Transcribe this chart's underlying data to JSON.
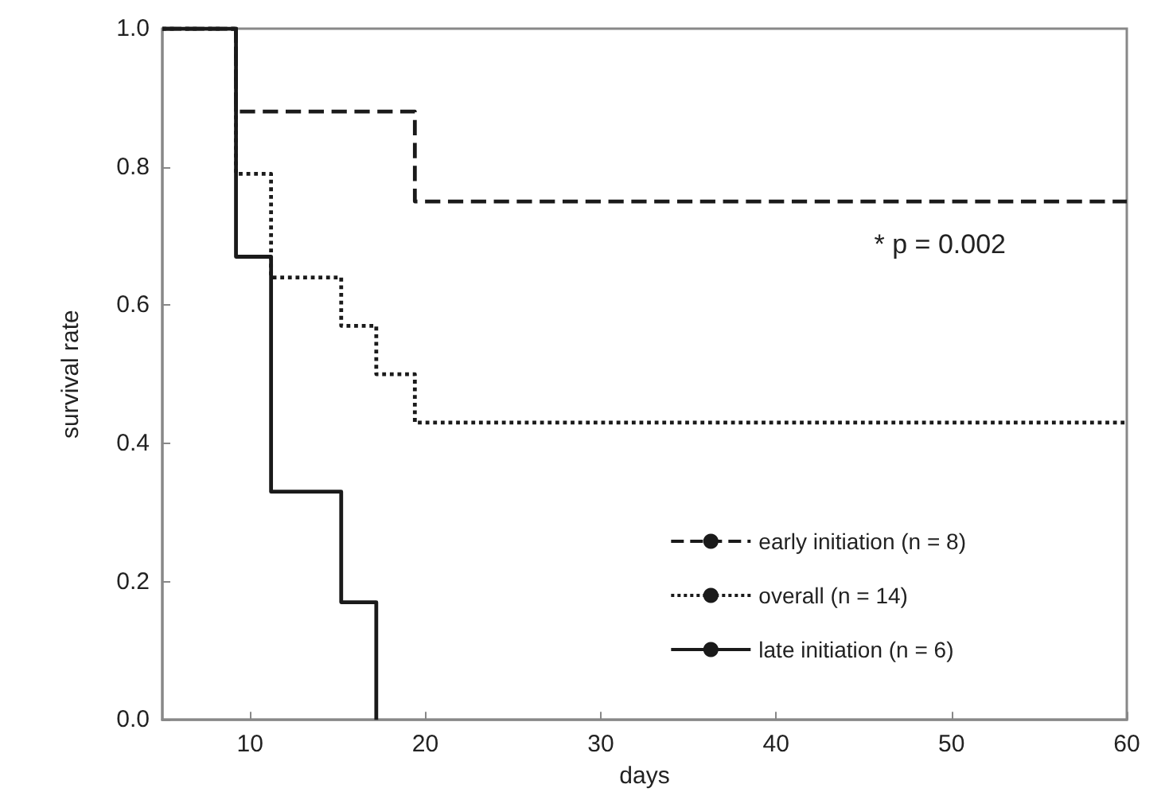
{
  "chart_data": {
    "type": "step",
    "xlabel": "days",
    "ylabel": "survival rate",
    "xlim": [
      5,
      60
    ],
    "xticks": [
      10,
      20,
      30,
      40,
      50,
      60
    ],
    "ylim": [
      0,
      1
    ],
    "yticks": [
      {
        "value": 0,
        "label": "0.0"
      },
      {
        "value": 0.2,
        "label": "0.2"
      },
      {
        "value": 0.4,
        "label": "0.4"
      },
      {
        "value": 0.6,
        "label": "0.6"
      },
      {
        "value": 0.8,
        "label": "0.8"
      },
      {
        "value": 1,
        "label": "1.0"
      }
    ],
    "grid": false,
    "legend": "bottom right",
    "marker": "none",
    "annotations": [
      "* p = 0.002"
    ],
    "series": [
      {
        "name": "early initiation (n = 8)",
        "color": "#1a1a1a",
        "line_style": "dashed",
        "x": [
          5,
          9.2,
          19.4,
          60
        ],
        "values": [
          1,
          0.88,
          0.75,
          0.75
        ]
      },
      {
        "name": "overall (n = 14)",
        "color": "#1a1a1a",
        "line_style": "dotted",
        "x": [
          5,
          9.2,
          11.2,
          15.2,
          17.2,
          19.4,
          60
        ],
        "values": [
          1,
          0.79,
          0.64,
          0.57,
          0.5,
          0.43,
          0.43
        ]
      },
      {
        "name": "late initiation (n = 6)",
        "color": "#1a1a1a",
        "line_style": "solid",
        "x": [
          5,
          9.2,
          11.2,
          15.2,
          17.2
        ],
        "values": [
          1,
          0.67,
          0.33,
          0.17,
          0
        ]
      }
    ]
  }
}
